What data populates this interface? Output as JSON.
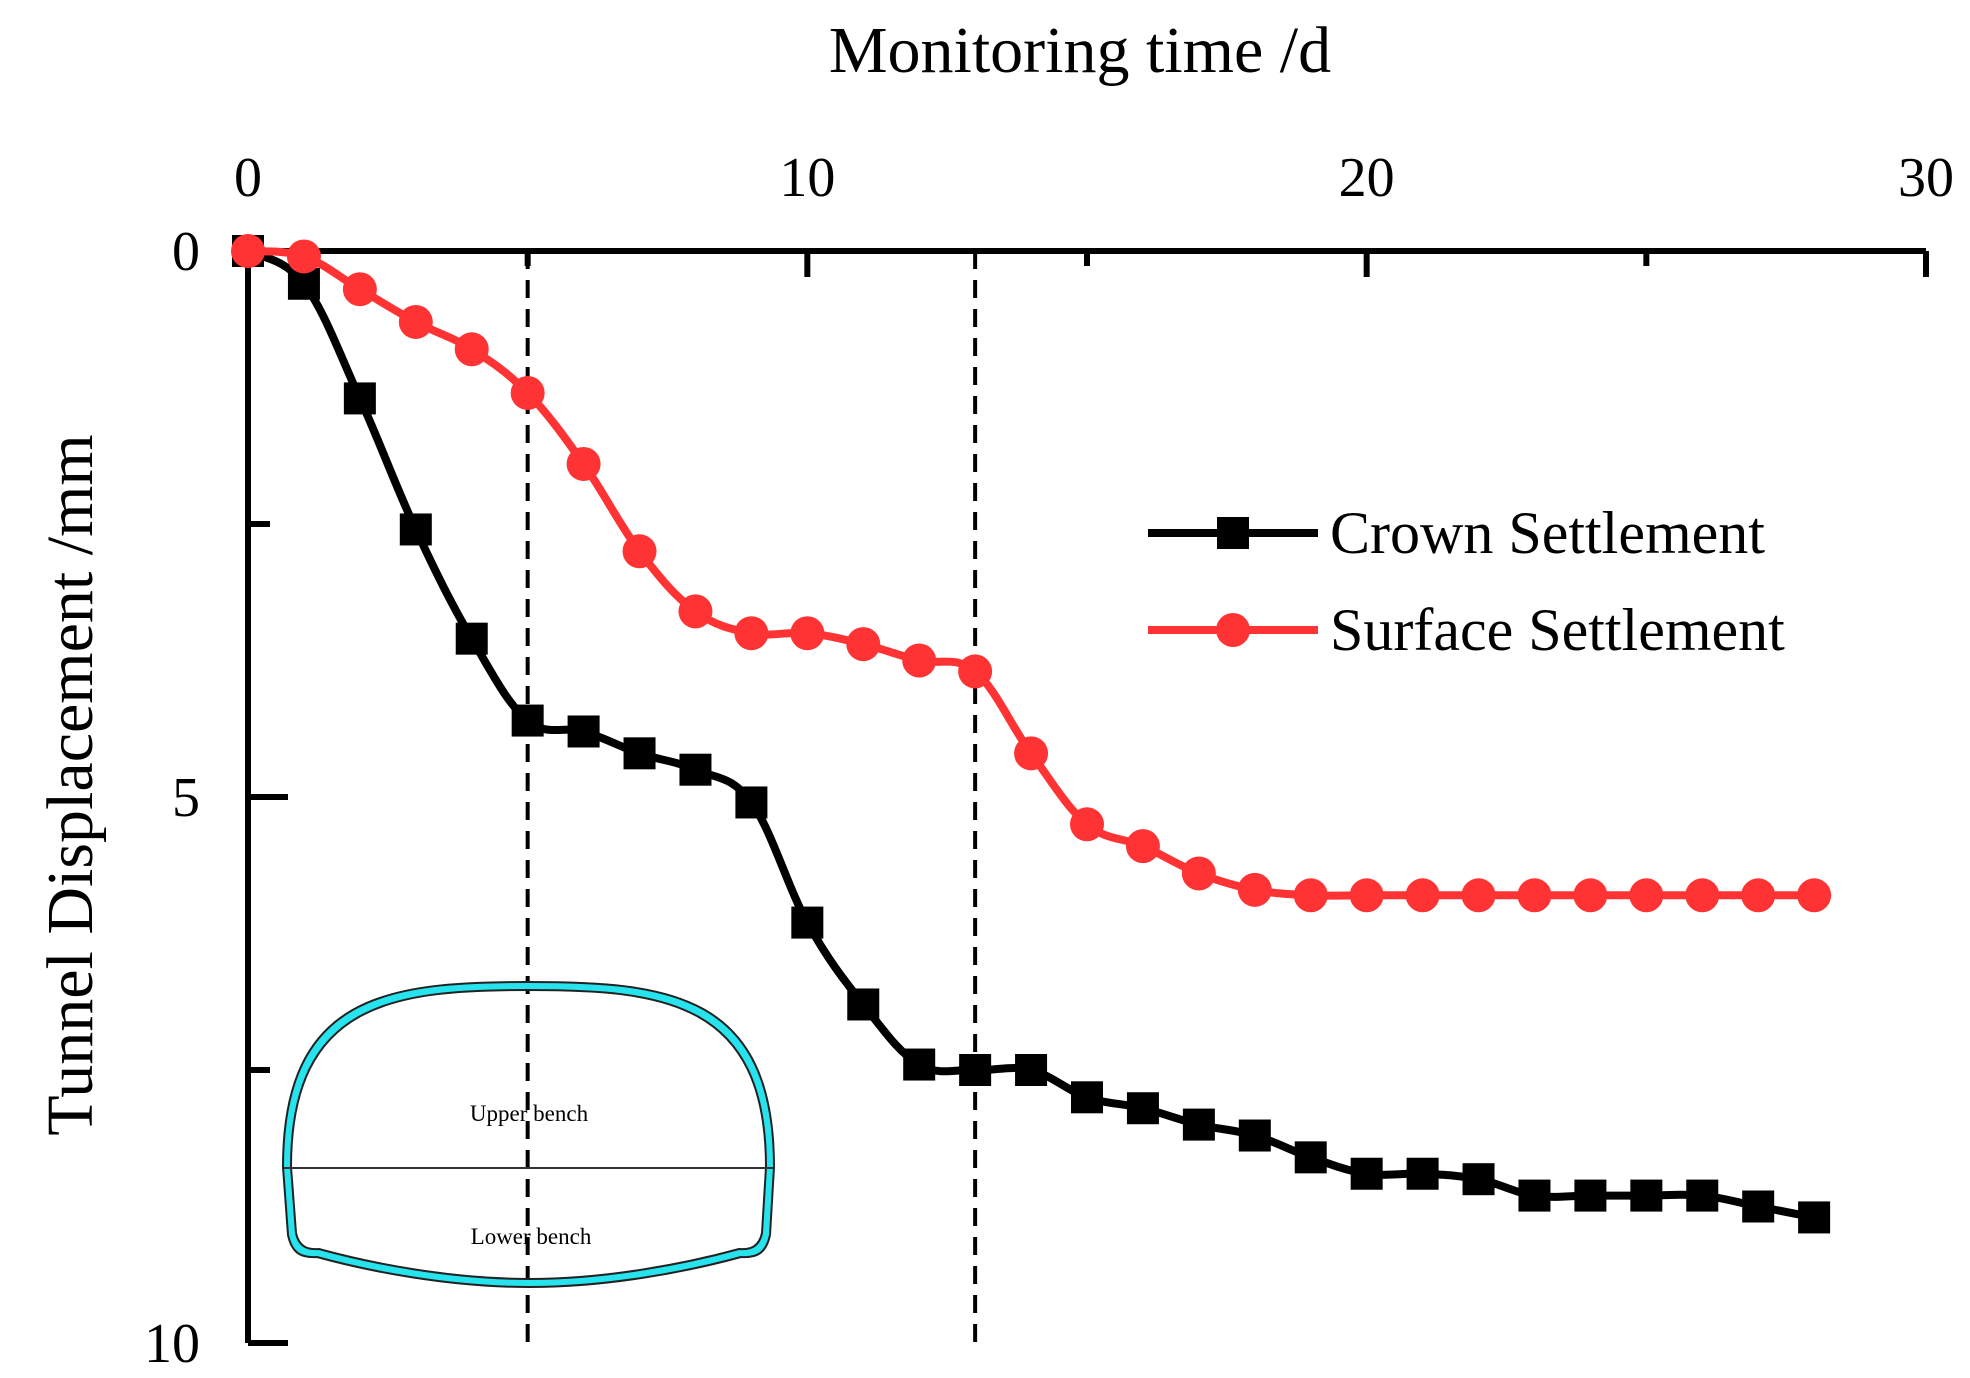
{
  "chart_data": {
    "type": "line",
    "xlabel": "Monitoring time /d",
    "ylabel": "Tunnel Displacement /mm",
    "xlim": [
      0,
      30
    ],
    "ylim": [
      0,
      10
    ],
    "x_axis_position": "top",
    "y_axis_inverted": true,
    "x_ticks": [
      "0",
      "10",
      "20",
      "30"
    ],
    "y_ticks": [
      "0",
      "5",
      "10"
    ],
    "grid": false,
    "legend_position": "right",
    "vertical_reference_lines_x": [
      5,
      13
    ],
    "series": [
      {
        "name": "Crown Settlement",
        "color": "#000000",
        "marker": "square",
        "points": [
          [
            0,
            0
          ],
          [
            1,
            0.3
          ],
          [
            2,
            1.35
          ],
          [
            3,
            2.55
          ],
          [
            4,
            3.55
          ],
          [
            5,
            4.3
          ],
          [
            6,
            4.4
          ],
          [
            7,
            4.6
          ],
          [
            8,
            4.75
          ],
          [
            9,
            5.05
          ],
          [
            10,
            6.15
          ],
          [
            11,
            6.9
          ],
          [
            12,
            7.45
          ],
          [
            13,
            7.5
          ],
          [
            14,
            7.5
          ],
          [
            15,
            7.75
          ],
          [
            16,
            7.85
          ],
          [
            17,
            8.0
          ],
          [
            18,
            8.1
          ],
          [
            19,
            8.3
          ],
          [
            20,
            8.45
          ],
          [
            21,
            8.45
          ],
          [
            22,
            8.5
          ],
          [
            23,
            8.65
          ],
          [
            24,
            8.65
          ],
          [
            25,
            8.65
          ],
          [
            26,
            8.65
          ],
          [
            27,
            8.75
          ],
          [
            28,
            8.85
          ]
        ]
      },
      {
        "name": "Surface Settlement",
        "color": "#ff3333",
        "marker": "circle",
        "points": [
          [
            0,
            0
          ],
          [
            1,
            0.05
          ],
          [
            2,
            0.35
          ],
          [
            3,
            0.65
          ],
          [
            4,
            0.9
          ],
          [
            5,
            1.3
          ],
          [
            6,
            1.95
          ],
          [
            7,
            2.75
          ],
          [
            8,
            3.3
          ],
          [
            9,
            3.5
          ],
          [
            10,
            3.5
          ],
          [
            11,
            3.6
          ],
          [
            12,
            3.75
          ],
          [
            13,
            3.85
          ],
          [
            14,
            4.6
          ],
          [
            15,
            5.25
          ],
          [
            16,
            5.45
          ],
          [
            17,
            5.7
          ],
          [
            18,
            5.85
          ],
          [
            19,
            5.9
          ],
          [
            20,
            5.9
          ],
          [
            21,
            5.9
          ],
          [
            22,
            5.9
          ],
          [
            23,
            5.9
          ],
          [
            24,
            5.9
          ],
          [
            25,
            5.9
          ],
          [
            26,
            5.9
          ],
          [
            27,
            5.9
          ],
          [
            28,
            5.9
          ]
        ]
      }
    ]
  },
  "inset": {
    "upper_label": "Upper bench",
    "lower_label": "Lower bench",
    "lining_color": "#26e3ee"
  }
}
